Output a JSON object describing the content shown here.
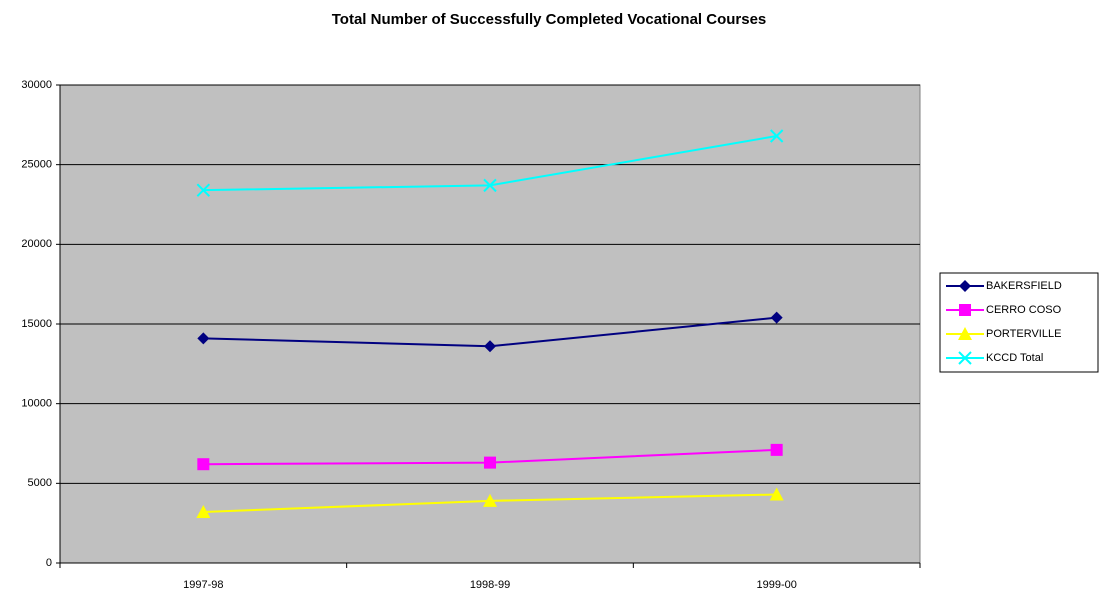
{
  "chart_data": {
    "type": "line",
    "title": "Total Number of Successfully Completed Vocational Courses",
    "categories": [
      "1997-98",
      "1998-99",
      "1999-00"
    ],
    "series": [
      {
        "name": "BAKERSFIELD",
        "color": "#000080",
        "marker": "diamond",
        "values": [
          14100,
          13600,
          15400
        ]
      },
      {
        "name": "CERRO COSO",
        "color": "#ff00ff",
        "marker": "square",
        "values": [
          6200,
          6300,
          7100
        ]
      },
      {
        "name": "PORTERVILLE",
        "color": "#ffff00",
        "marker": "triangle",
        "values": [
          3200,
          3900,
          4300
        ]
      },
      {
        "name": "KCCD Total",
        "color": "#00ffff",
        "marker": "x",
        "values": [
          23400,
          23700,
          26800
        ]
      }
    ],
    "ylim": [
      0,
      30000
    ],
    "yticks": [
      0,
      5000,
      10000,
      15000,
      20000,
      25000,
      30000
    ],
    "grid": true,
    "legend": "right"
  }
}
